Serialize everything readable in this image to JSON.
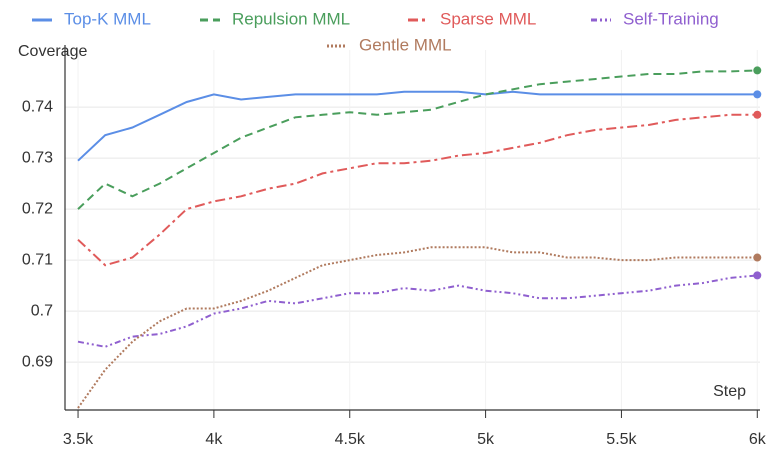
{
  "chart_data": {
    "type": "line",
    "ylabel": "Coverage",
    "xlabel": "Step",
    "x": [
      3500,
      3600,
      3700,
      3800,
      3900,
      4000,
      4100,
      4200,
      4300,
      4400,
      4500,
      4600,
      4700,
      4800,
      4900,
      5000,
      5100,
      5200,
      5300,
      5400,
      5500,
      5600,
      5700,
      5800,
      5900,
      6000
    ],
    "series": [
      {
        "name": "Top-K MML",
        "color": "#5b8ee6",
        "values": [
          0.7295,
          0.7345,
          0.736,
          0.7385,
          0.741,
          0.7425,
          0.7415,
          0.742,
          0.7425,
          0.7425,
          0.7425,
          0.7425,
          0.743,
          0.743,
          0.743,
          0.7425,
          0.743,
          0.7425,
          0.7425,
          0.7425,
          0.7425,
          0.7425,
          0.7425,
          0.7425,
          0.7425,
          0.7425
        ]
      },
      {
        "name": "Repulsion MML",
        "color": "#4a9e5c",
        "values": [
          0.72,
          0.725,
          0.7225,
          0.725,
          0.728,
          0.731,
          0.734,
          0.736,
          0.738,
          0.7385,
          0.739,
          0.7385,
          0.739,
          0.7395,
          0.741,
          0.7425,
          0.7435,
          0.7445,
          0.745,
          0.7455,
          0.746,
          0.7465,
          0.7465,
          0.747,
          0.747,
          0.7472
        ]
      },
      {
        "name": "Sparse MML",
        "color": "#e05a5a",
        "values": [
          0.714,
          0.709,
          0.7105,
          0.715,
          0.72,
          0.7215,
          0.7225,
          0.724,
          0.725,
          0.727,
          0.728,
          0.729,
          0.729,
          0.7295,
          0.7305,
          0.731,
          0.732,
          0.733,
          0.7345,
          0.7355,
          0.736,
          0.7365,
          0.7375,
          0.738,
          0.7385,
          0.7385
        ]
      },
      {
        "name": "Self-Training",
        "color": "#8f5fcf",
        "values": [
          0.694,
          0.693,
          0.695,
          0.6955,
          0.697,
          0.6995,
          0.7005,
          0.702,
          0.7015,
          0.7025,
          0.7035,
          0.7035,
          0.7045,
          0.704,
          0.705,
          0.704,
          0.7035,
          0.7025,
          0.7025,
          0.703,
          0.7035,
          0.704,
          0.705,
          0.7055,
          0.7065,
          0.707
        ]
      },
      {
        "name": "Gentle MML",
        "color": "#b07a5e",
        "values": [
          0.681,
          0.6885,
          0.694,
          0.698,
          0.7005,
          0.7005,
          0.702,
          0.704,
          0.7065,
          0.709,
          0.71,
          0.711,
          0.7115,
          0.7125,
          0.7125,
          0.7125,
          0.7115,
          0.7115,
          0.7105,
          0.7105,
          0.71,
          0.71,
          0.7105,
          0.7105,
          0.7105,
          0.7105
        ]
      }
    ],
    "xlim": [
      3452,
      6010
    ],
    "ylim": [
      0.6806,
      0.7512
    ],
    "xticks": [
      {
        "value": 3500,
        "label": "3.5k"
      },
      {
        "value": 4000,
        "label": "4k"
      },
      {
        "value": 4500,
        "label": "4.5k"
      },
      {
        "value": 5000,
        "label": "5k"
      },
      {
        "value": 5500,
        "label": "5.5k"
      },
      {
        "value": 6000,
        "label": "6k"
      }
    ],
    "yticks": [
      0.69,
      0.7,
      0.71,
      0.72,
      0.73,
      0.74
    ],
    "grid": true,
    "legend": "top"
  }
}
